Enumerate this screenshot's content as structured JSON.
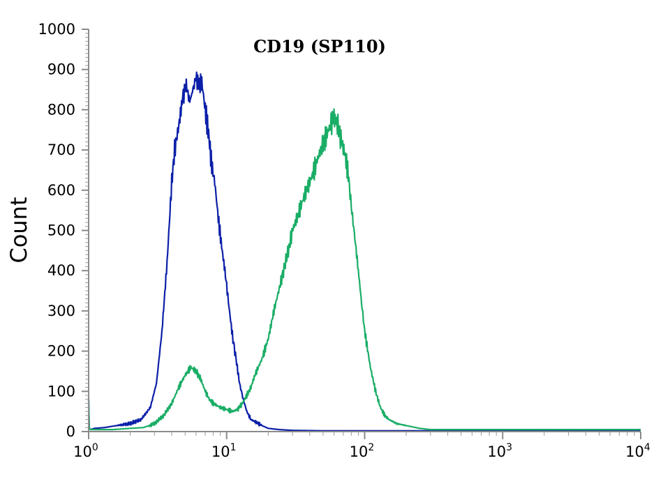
{
  "chart_data": {
    "type": "line",
    "title": "CD19 (SP110)",
    "xlabel": "",
    "ylabel": "Count",
    "x_scale": "log",
    "xlim": [
      1,
      10000
    ],
    "ylim": [
      0,
      1000
    ],
    "grid": false,
    "x_ticks": [
      {
        "value": 1,
        "base": "10",
        "exp": "0"
      },
      {
        "value": 10,
        "base": "10",
        "exp": "1"
      },
      {
        "value": 100,
        "base": "10",
        "exp": "2"
      },
      {
        "value": 1000,
        "base": "10",
        "exp": "3"
      },
      {
        "value": 10000,
        "base": "10",
        "exp": "4"
      }
    ],
    "y_ticks": [
      {
        "value": 0,
        "label": "0"
      },
      {
        "value": 100,
        "label": "100"
      },
      {
        "value": 200,
        "label": "200"
      },
      {
        "value": 300,
        "label": "300"
      },
      {
        "value": 400,
        "label": "400"
      },
      {
        "value": 500,
        "label": "500"
      },
      {
        "value": 600,
        "label": "600"
      },
      {
        "value": 700,
        "label": "700"
      },
      {
        "value": 800,
        "label": "800"
      },
      {
        "value": 900,
        "label": "900"
      },
      {
        "value": 1000,
        "label": "1000"
      }
    ],
    "series": [
      {
        "color": "#0b1fa8",
        "x": [
          1,
          1.01,
          1.03,
          1.1,
          1.3,
          1.6,
          2,
          2.4,
          2.8,
          3.1,
          3.4,
          3.7,
          4,
          4.2,
          4.5,
          4.8,
          5.1,
          5.4,
          5.7,
          6,
          6.3,
          6.6,
          7,
          7.4,
          7.8,
          8.2,
          8.7,
          9.2,
          9.8,
          10.4,
          11,
          11.7,
          12.4,
          13.2,
          14,
          15,
          16,
          18,
          20,
          24,
          30,
          50,
          100,
          1000,
          10000
        ],
        "y": [
          80,
          10,
          5,
          8,
          10,
          15,
          20,
          30,
          60,
          120,
          250,
          420,
          620,
          700,
          760,
          830,
          860,
          820,
          850,
          880,
          860,
          870,
          800,
          740,
          660,
          620,
          530,
          460,
          390,
          310,
          240,
          180,
          120,
          80,
          50,
          30,
          25,
          15,
          8,
          5,
          3,
          2,
          2,
          2,
          2
        ]
      },
      {
        "color": "#1aad66",
        "x": [
          1,
          1.01,
          1.03,
          1.5,
          2,
          2.5,
          3,
          3.5,
          4,
          4.5,
          5,
          5.5,
          6,
          6.5,
          7,
          7.5,
          8,
          9,
          10,
          11,
          12,
          13,
          14,
          15,
          16,
          18,
          20,
          22,
          25,
          28,
          30,
          33,
          36,
          40,
          44,
          48,
          52,
          56,
          60,
          64,
          68,
          72,
          76,
          80,
          85,
          90,
          95,
          100,
          110,
          120,
          130,
          140,
          150,
          170,
          200,
          250,
          300,
          500,
          1000,
          10000
        ],
        "y": [
          80,
          10,
          5,
          5,
          8,
          10,
          20,
          40,
          70,
          110,
          140,
          160,
          150,
          130,
          100,
          80,
          70,
          60,
          55,
          50,
          55,
          70,
          90,
          110,
          140,
          180,
          230,
          300,
          380,
          450,
          500,
          540,
          580,
          620,
          660,
          700,
          730,
          760,
          780,
          760,
          720,
          690,
          640,
          560,
          480,
          400,
          320,
          250,
          160,
          100,
          60,
          40,
          30,
          20,
          15,
          8,
          5,
          5,
          5,
          5
        ]
      }
    ]
  }
}
